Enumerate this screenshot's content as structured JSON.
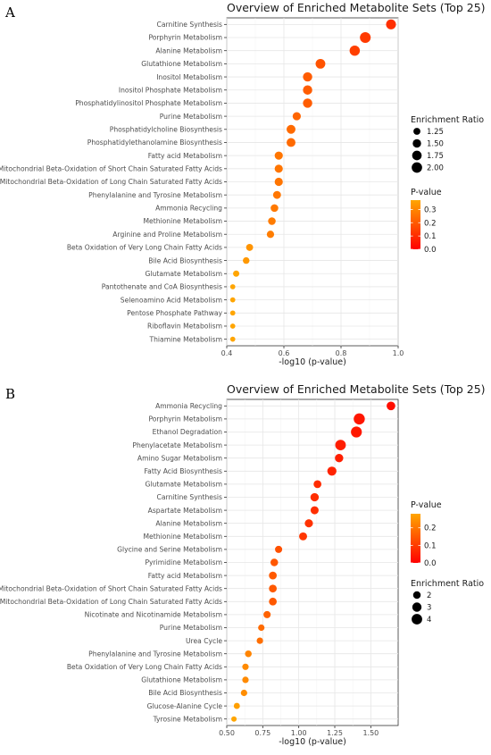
{
  "chart_data": [
    {
      "panel_label": "A",
      "type": "scatter",
      "title": "Overview of Enriched Metabolite Sets (Top 25)",
      "xlabel": "-log10 (p-value)",
      "ylabel": "",
      "xlim": [
        0.4,
        1.0
      ],
      "xticks": [
        0.4,
        0.6,
        0.8,
        1.0
      ],
      "xtick_labels": [
        "0.4",
        "0.6",
        "0.8",
        "1.0"
      ],
      "grid": true,
      "legend_order": [
        "size",
        "color"
      ],
      "size_legend": {
        "title": "Enrichment Ratio",
        "values": [
          1.25,
          1.5,
          1.75,
          2.0
        ],
        "labels": [
          "1.25",
          "1.50",
          "1.75",
          "2.00"
        ],
        "range": [
          1.0,
          2.2
        ]
      },
      "color_legend": {
        "title": "P-value",
        "ticks": [
          0.0,
          0.1,
          0.2,
          0.3
        ],
        "tick_labels": [
          "0.0",
          "0.1",
          "0.2",
          "0.3"
        ],
        "range": [
          0.0,
          0.37
        ],
        "low_color": "#ff0000",
        "high_color": "#ffa500"
      },
      "points": [
        {
          "name": "Carnitine Synthesis",
          "x": 0.975,
          "ratio": 1.85,
          "p": 0.106
        },
        {
          "name": "Porphyrin Metabolism",
          "x": 0.885,
          "ratio": 2.1,
          "p": 0.13
        },
        {
          "name": "Alanine Metabolism",
          "x": 0.848,
          "ratio": 1.95,
          "p": 0.142
        },
        {
          "name": "Glutathione Metabolism",
          "x": 0.728,
          "ratio": 1.8,
          "p": 0.187
        },
        {
          "name": "Inositol Metabolism",
          "x": 0.683,
          "ratio": 1.7,
          "p": 0.207
        },
        {
          "name": "Inositol Phosphate Metabolism",
          "x": 0.683,
          "ratio": 1.7,
          "p": 0.207
        },
        {
          "name": "Phosphatidylinositol Phosphate Metabolism",
          "x": 0.683,
          "ratio": 1.7,
          "p": 0.207
        },
        {
          "name": "Purine Metabolism",
          "x": 0.645,
          "ratio": 1.45,
          "p": 0.226
        },
        {
          "name": "Phosphatidylcholine Biosynthesis",
          "x": 0.625,
          "ratio": 1.6,
          "p": 0.237
        },
        {
          "name": "Phosphatidylethanolamine Biosynthesis",
          "x": 0.625,
          "ratio": 1.6,
          "p": 0.237
        },
        {
          "name": "Fatty acid Metabolism",
          "x": 0.582,
          "ratio": 1.45,
          "p": 0.262
        },
        {
          "name": "Mitochondrial Beta-Oxidation of Short Chain Saturated Fatty Acids",
          "x": 0.582,
          "ratio": 1.45,
          "p": 0.262
        },
        {
          "name": "Mitochondrial Beta-Oxidation of Long Chain Saturated Fatty Acids",
          "x": 0.582,
          "ratio": 1.45,
          "p": 0.262
        },
        {
          "name": "Phenylalanine and Tyrosine Metabolism",
          "x": 0.576,
          "ratio": 1.4,
          "p": 0.265
        },
        {
          "name": "Ammonia Recycling",
          "x": 0.567,
          "ratio": 1.35,
          "p": 0.271
        },
        {
          "name": "Methionine Metabolism",
          "x": 0.558,
          "ratio": 1.35,
          "p": 0.277
        },
        {
          "name": "Arginine and Proline Metabolism",
          "x": 0.553,
          "ratio": 1.3,
          "p": 0.28
        },
        {
          "name": "Beta Oxidation of Very Long Chain Fatty Acids",
          "x": 0.48,
          "ratio": 1.25,
          "p": 0.331
        },
        {
          "name": "Bile Acid Biosynthesis",
          "x": 0.468,
          "ratio": 1.2,
          "p": 0.34
        },
        {
          "name": "Glutamate Metabolism",
          "x": 0.433,
          "ratio": 1.15,
          "p": 0.369
        },
        {
          "name": "Pantothenate and CoA Biosynthesis",
          "x": 0.421,
          "ratio": 1.05,
          "p": 0.379
        },
        {
          "name": "Selenoamino Acid Metabolism",
          "x": 0.421,
          "ratio": 1.05,
          "p": 0.379
        },
        {
          "name": "Pentose Phosphate Pathway",
          "x": 0.421,
          "ratio": 1.05,
          "p": 0.379
        },
        {
          "name": "Riboflavin Metabolism",
          "x": 0.421,
          "ratio": 1.05,
          "p": 0.379
        },
        {
          "name": "Thiamine Metabolism",
          "x": 0.421,
          "ratio": 1.05,
          "p": 0.379
        }
      ]
    },
    {
      "panel_label": "B",
      "type": "scatter",
      "title": "Overview of Enriched Metabolite Sets (Top 25)",
      "xlabel": "-log10 (p-value)",
      "ylabel": "",
      "xlim": [
        0.5,
        1.69
      ],
      "xticks": [
        0.5,
        0.75,
        1.0,
        1.25,
        1.5
      ],
      "xtick_labels": [
        "0.50",
        "0.75",
        "1.00",
        "1.25",
        "1.50"
      ],
      "grid": true,
      "legend_order": [
        "color",
        "size"
      ],
      "size_legend": {
        "title": "Enrichment Ratio",
        "values": [
          2,
          3,
          4
        ],
        "labels": [
          "2",
          "3",
          "4"
        ],
        "range": [
          1.0,
          4.8
        ]
      },
      "color_legend": {
        "title": "P-value",
        "ticks": [
          0.0,
          0.1,
          0.2
        ],
        "tick_labels": [
          "0.0",
          "0.1",
          "0.2"
        ],
        "range": [
          0.0,
          0.28
        ],
        "low_color": "#ff0000",
        "high_color": "#ffa500"
      },
      "points": [
        {
          "name": "Ammonia Recycling",
          "x": 1.64,
          "ratio": 2.6,
          "p": 0.023
        },
        {
          "name": "Porphyrin Metabolism",
          "x": 1.42,
          "ratio": 4.5,
          "p": 0.038
        },
        {
          "name": "Ethanol Degradation",
          "x": 1.4,
          "ratio": 4.3,
          "p": 0.04
        },
        {
          "name": "Phenylacetate Metabolism",
          "x": 1.29,
          "ratio": 4.0,
          "p": 0.051
        },
        {
          "name": "Amino Sugar Metabolism",
          "x": 1.28,
          "ratio": 2.4,
          "p": 0.052
        },
        {
          "name": "Fatty Acid Biosynthesis",
          "x": 1.23,
          "ratio": 2.9,
          "p": 0.059
        },
        {
          "name": "Glutamate Metabolism",
          "x": 1.13,
          "ratio": 2.1,
          "p": 0.074
        },
        {
          "name": "Carnitine Synthesis",
          "x": 1.11,
          "ratio": 2.4,
          "p": 0.078
        },
        {
          "name": "Aspartate Metabolism",
          "x": 1.11,
          "ratio": 2.2,
          "p": 0.078
        },
        {
          "name": "Alanine Metabolism",
          "x": 1.07,
          "ratio": 2.3,
          "p": 0.085
        },
        {
          "name": "Methionine Metabolism",
          "x": 1.03,
          "ratio": 2.2,
          "p": 0.093
        },
        {
          "name": "Glycine and Serine Metabolism",
          "x": 0.86,
          "ratio": 1.8,
          "p": 0.138
        },
        {
          "name": "Pyrimidine Metabolism",
          "x": 0.83,
          "ratio": 2.0,
          "p": 0.148
        },
        {
          "name": "Fatty acid Metabolism",
          "x": 0.82,
          "ratio": 2.1,
          "p": 0.151
        },
        {
          "name": "Mitochondrial Beta-Oxidation of Short Chain Saturated Fatty Acids",
          "x": 0.82,
          "ratio": 2.1,
          "p": 0.151
        },
        {
          "name": "Mitochondrial Beta-Oxidation of Long Chain Saturated Fatty Acids",
          "x": 0.82,
          "ratio": 2.1,
          "p": 0.151
        },
        {
          "name": "Nicotinate and Nicotinamide Metabolism",
          "x": 0.78,
          "ratio": 1.8,
          "p": 0.166
        },
        {
          "name": "Purine Metabolism",
          "x": 0.74,
          "ratio": 1.5,
          "p": 0.182
        },
        {
          "name": "Urea Cycle",
          "x": 0.73,
          "ratio": 1.5,
          "p": 0.186
        },
        {
          "name": "Phenylalanine and Tyrosine Metabolism",
          "x": 0.65,
          "ratio": 1.6,
          "p": 0.224
        },
        {
          "name": "Beta Oxidation of Very Long Chain Fatty Acids",
          "x": 0.63,
          "ratio": 1.5,
          "p": 0.234
        },
        {
          "name": "Glutathione Metabolism",
          "x": 0.63,
          "ratio": 1.5,
          "p": 0.234
        },
        {
          "name": "Bile Acid Biosynthesis",
          "x": 0.62,
          "ratio": 1.5,
          "p": 0.24
        },
        {
          "name": "Glucose-Alanine Cycle",
          "x": 0.57,
          "ratio": 1.4,
          "p": 0.269
        },
        {
          "name": "Tyrosine Metabolism",
          "x": 0.55,
          "ratio": 1.2,
          "p": 0.282
        }
      ]
    }
  ]
}
